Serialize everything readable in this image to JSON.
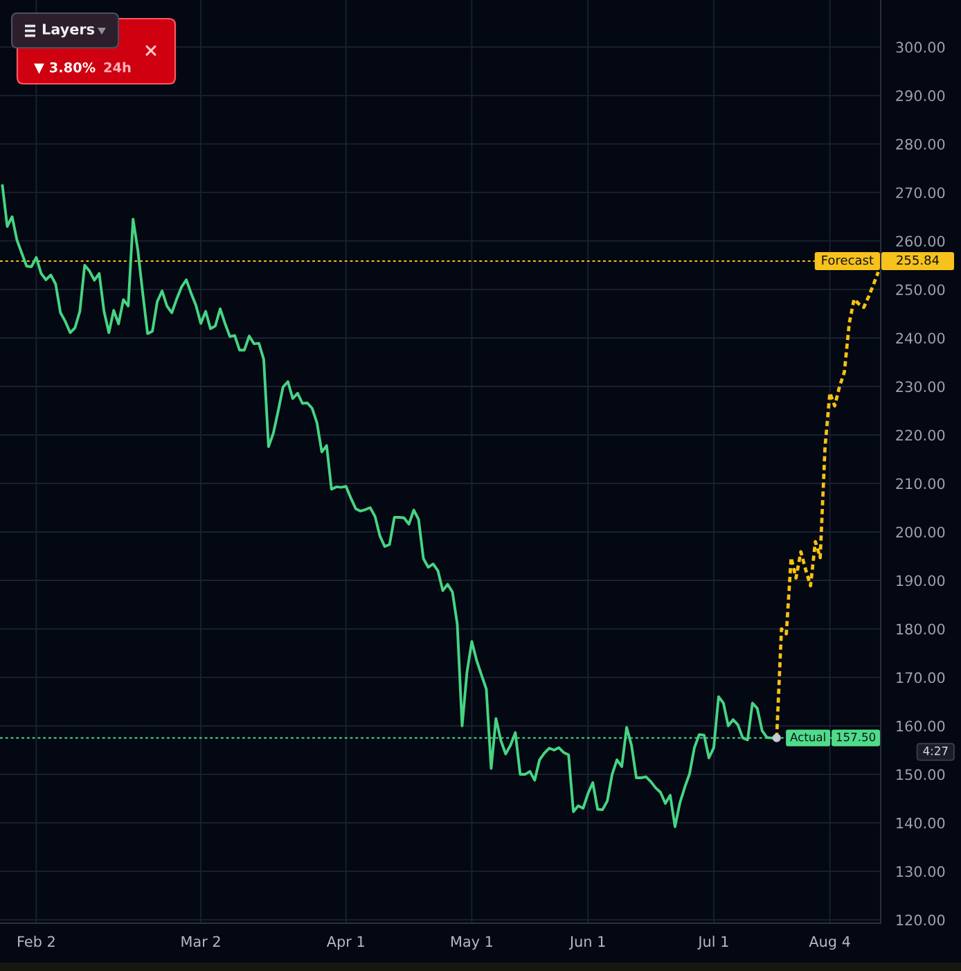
{
  "chart_data": {
    "type": "line",
    "categories": [
      null,
      null,
      null,
      null,
      null,
      null,
      null,
      "Feb 2",
      null,
      null,
      null,
      null,
      null,
      null,
      null,
      null,
      null,
      null,
      null,
      null,
      null,
      null,
      null,
      null,
      null,
      null,
      null,
      null,
      null,
      null,
      null,
      null,
      null,
      null,
      null,
      null,
      null,
      null,
      null,
      null,
      null,
      "Mar 2",
      null,
      null,
      null,
      null,
      null,
      null,
      null,
      null,
      null,
      null,
      null,
      null,
      null,
      null,
      null,
      null,
      null,
      null,
      null,
      null,
      null,
      null,
      null,
      null,
      null,
      null,
      null,
      null,
      null,
      "Apr 1",
      null,
      null,
      null,
      null,
      null,
      null,
      null,
      null,
      null,
      null,
      null,
      null,
      null,
      null,
      null,
      null,
      null,
      null,
      null,
      null,
      null,
      null,
      null,
      null,
      null,
      "May 1",
      null,
      null,
      null,
      null,
      null,
      null,
      null,
      null,
      null,
      null,
      null,
      null,
      null,
      null,
      null,
      null,
      null,
      null,
      null,
      null,
      null,
      null,
      null,
      "Jun 1",
      null,
      null,
      null,
      null,
      null,
      null,
      null,
      null,
      null,
      null,
      null,
      null,
      null,
      null,
      null,
      null,
      null,
      null,
      null,
      null,
      null,
      null,
      null,
      null,
      null,
      "Jul 1",
      null,
      null,
      null,
      null,
      null,
      null,
      null,
      null,
      null,
      null,
      null,
      null,
      null,
      null,
      null,
      null,
      null,
      null,
      null,
      null,
      null,
      null,
      null,
      "Aug 4",
      null,
      null,
      null,
      null,
      null,
      null,
      null,
      null,
      null,
      null
    ],
    "series": [
      {
        "color": "#46d483",
        "values": [
          271.4,
          263.0,
          265.0,
          260.2,
          257.5,
          254.8,
          254.7,
          256.6,
          253.3,
          252.0,
          253.0,
          251.1,
          245.2,
          243.4,
          241.1,
          242.1,
          245.5,
          255.0,
          253.8,
          251.9,
          253.3,
          245.5,
          241.1,
          245.7,
          242.9,
          247.9,
          246.6,
          264.5,
          258.0,
          249.2,
          240.9,
          241.4,
          247.5,
          249.7,
          246.6,
          245.2,
          248.0,
          250.5,
          252.0,
          249.2,
          246.7,
          243.0,
          245.5,
          241.9,
          242.5,
          246.0,
          243.0,
          240.3,
          240.5,
          237.5,
          237.5,
          240.4,
          238.8,
          238.9,
          235.6,
          217.6,
          220.4,
          225.0,
          229.9,
          231.0,
          227.5,
          228.6,
          226.5,
          226.6,
          225.5,
          222.5,
          216.5,
          217.8,
          208.8,
          209.3,
          209.2,
          209.4,
          207.0,
          204.8,
          204.3,
          204.6,
          205.0,
          203.2,
          199.2,
          197.0,
          197.4,
          203.0,
          203.0,
          202.9,
          201.6,
          204.5,
          202.6,
          194.5,
          192.7,
          193.4,
          192.0,
          187.9,
          189.2,
          187.6,
          181.0,
          160.0,
          171.0,
          177.4,
          173.5,
          170.5,
          167.6,
          151.2,
          161.5,
          157.0,
          154.2,
          156.0,
          158.6,
          150.0,
          150.0,
          150.6,
          148.8,
          153.0,
          154.4,
          155.4,
          155.0,
          155.5,
          154.5,
          154.0,
          142.3,
          143.5,
          143.0,
          146.0,
          148.3,
          142.8,
          142.7,
          144.5,
          150.0,
          153.0,
          151.6,
          159.7,
          156.0,
          149.3,
          149.3,
          149.5,
          148.5,
          147.2,
          146.3,
          144.0,
          145.7,
          139.2,
          144.1,
          147.3,
          150.1,
          155.5,
          158.2,
          158.1,
          153.4,
          155.5,
          166.0,
          164.7,
          160.0,
          161.3,
          160.2,
          157.5,
          157.1,
          164.7,
          163.6,
          159.0,
          157.6,
          157.5,
          157.5,
          null,
          null,
          null,
          null,
          null,
          null,
          null,
          null,
          null,
          null,
          null,
          null,
          null,
          null,
          null,
          null,
          null,
          null,
          null,
          null,
          null
        ]
      },
      {
        "color": "#f5c211",
        "line_style": "dotted",
        "values": [
          null,
          null,
          null,
          null,
          null,
          null,
          null,
          null,
          null,
          null,
          null,
          null,
          null,
          null,
          null,
          null,
          null,
          null,
          null,
          null,
          null,
          null,
          null,
          null,
          null,
          null,
          null,
          null,
          null,
          null,
          null,
          null,
          null,
          null,
          null,
          null,
          null,
          null,
          null,
          null,
          null,
          null,
          null,
          null,
          null,
          null,
          null,
          null,
          null,
          null,
          null,
          null,
          null,
          null,
          null,
          null,
          null,
          null,
          null,
          null,
          null,
          null,
          null,
          null,
          null,
          null,
          null,
          null,
          null,
          null,
          null,
          null,
          null,
          null,
          null,
          null,
          null,
          null,
          null,
          null,
          null,
          null,
          null,
          null,
          null,
          null,
          null,
          null,
          null,
          null,
          null,
          null,
          null,
          null,
          null,
          null,
          null,
          null,
          null,
          null,
          null,
          null,
          null,
          null,
          null,
          null,
          null,
          null,
          null,
          null,
          null,
          null,
          null,
          null,
          null,
          null,
          null,
          null,
          null,
          null,
          null,
          null,
          null,
          null,
          null,
          null,
          null,
          null,
          null,
          null,
          null,
          null,
          null,
          null,
          null,
          null,
          null,
          null,
          null,
          null,
          null,
          null,
          null,
          null,
          null,
          null,
          null,
          null,
          null,
          null,
          null,
          null,
          null,
          null,
          null,
          null,
          null,
          null,
          null,
          null,
          157.5,
          180.0,
          179.0,
          194.7,
          190.5,
          195.9,
          192.2,
          188.9,
          198.0,
          194.7,
          217.5,
          228.7,
          226.0,
          230.0,
          233.0,
          243.0,
          248.0,
          247.0,
          246.3,
          248.5,
          251.0,
          253.6
        ]
      },
      {
        "type": "scatter",
        "color": "#c5c9d1",
        "marker": "circle",
        "values": [
          null,
          null,
          null,
          null,
          null,
          null,
          null,
          null,
          null,
          null,
          null,
          null,
          null,
          null,
          null,
          null,
          null,
          null,
          null,
          null,
          null,
          null,
          null,
          null,
          null,
          null,
          null,
          null,
          null,
          null,
          null,
          null,
          null,
          null,
          null,
          null,
          null,
          null,
          null,
          null,
          null,
          null,
          null,
          null,
          null,
          null,
          null,
          null,
          null,
          null,
          null,
          null,
          null,
          null,
          null,
          null,
          null,
          null,
          null,
          null,
          null,
          null,
          null,
          null,
          null,
          null,
          null,
          null,
          null,
          null,
          null,
          null,
          null,
          null,
          null,
          null,
          null,
          null,
          null,
          null,
          null,
          null,
          null,
          null,
          null,
          null,
          null,
          null,
          null,
          null,
          null,
          null,
          null,
          null,
          null,
          null,
          null,
          null,
          null,
          null,
          null,
          null,
          null,
          null,
          null,
          null,
          null,
          null,
          null,
          null,
          null,
          null,
          null,
          null,
          null,
          null,
          null,
          null,
          null,
          null,
          null,
          null,
          null,
          null,
          null,
          null,
          null,
          null,
          null,
          null,
          null,
          null,
          null,
          null,
          null,
          null,
          null,
          null,
          null,
          null,
          null,
          null,
          null,
          null,
          null,
          null,
          null,
          null,
          null,
          null,
          null,
          null,
          null,
          null,
          null,
          null,
          null,
          null,
          null,
          null,
          157.5,
          null,
          null,
          null,
          null,
          null,
          null,
          null,
          null,
          null,
          null,
          null,
          null,
          null,
          null,
          null,
          null,
          null,
          null,
          null,
          null,
          null
        ]
      }
    ],
    "ylim": [
      119.3,
      309.7
    ],
    "yticks": [
      {
        "value": 120,
        "label": "120.00"
      },
      {
        "value": 130,
        "label": "130.00"
      },
      {
        "value": 140,
        "label": "140.00"
      },
      {
        "value": 150,
        "label": "150.00"
      },
      {
        "value": 160,
        "label": "160.00"
      },
      {
        "value": 170,
        "label": "170.00"
      },
      {
        "value": 180,
        "label": "180.00"
      },
      {
        "value": 190,
        "label": "190.00"
      },
      {
        "value": 200,
        "label": "200.00"
      },
      {
        "value": 210,
        "label": "210.00"
      },
      {
        "value": 220,
        "label": "220.00"
      },
      {
        "value": 230,
        "label": "230.00"
      },
      {
        "value": 240,
        "label": "240.00"
      },
      {
        "value": 250,
        "label": "250.00"
      },
      {
        "value": 260,
        "label": "260.00"
      },
      {
        "value": 270,
        "label": "270.00"
      },
      {
        "value": 280,
        "label": "280.00"
      },
      {
        "value": 290,
        "label": "290.00"
      },
      {
        "value": 300,
        "label": "300.00"
      }
    ],
    "grid": true,
    "ref_lines": [
      {
        "axis": "y",
        "value": 255.84,
        "label": "Forecast",
        "color": "#f7c21b",
        "line_style": "dotted"
      },
      {
        "axis": "y",
        "value": 157.5,
        "label": "Actual",
        "color": "#4fdc8a",
        "line_style": "dotted"
      }
    ],
    "annotations": [
      "Layers",
      "▼ 3.80%",
      "24h",
      "4:27",
      "255.84",
      "157.50"
    ]
  }
}
